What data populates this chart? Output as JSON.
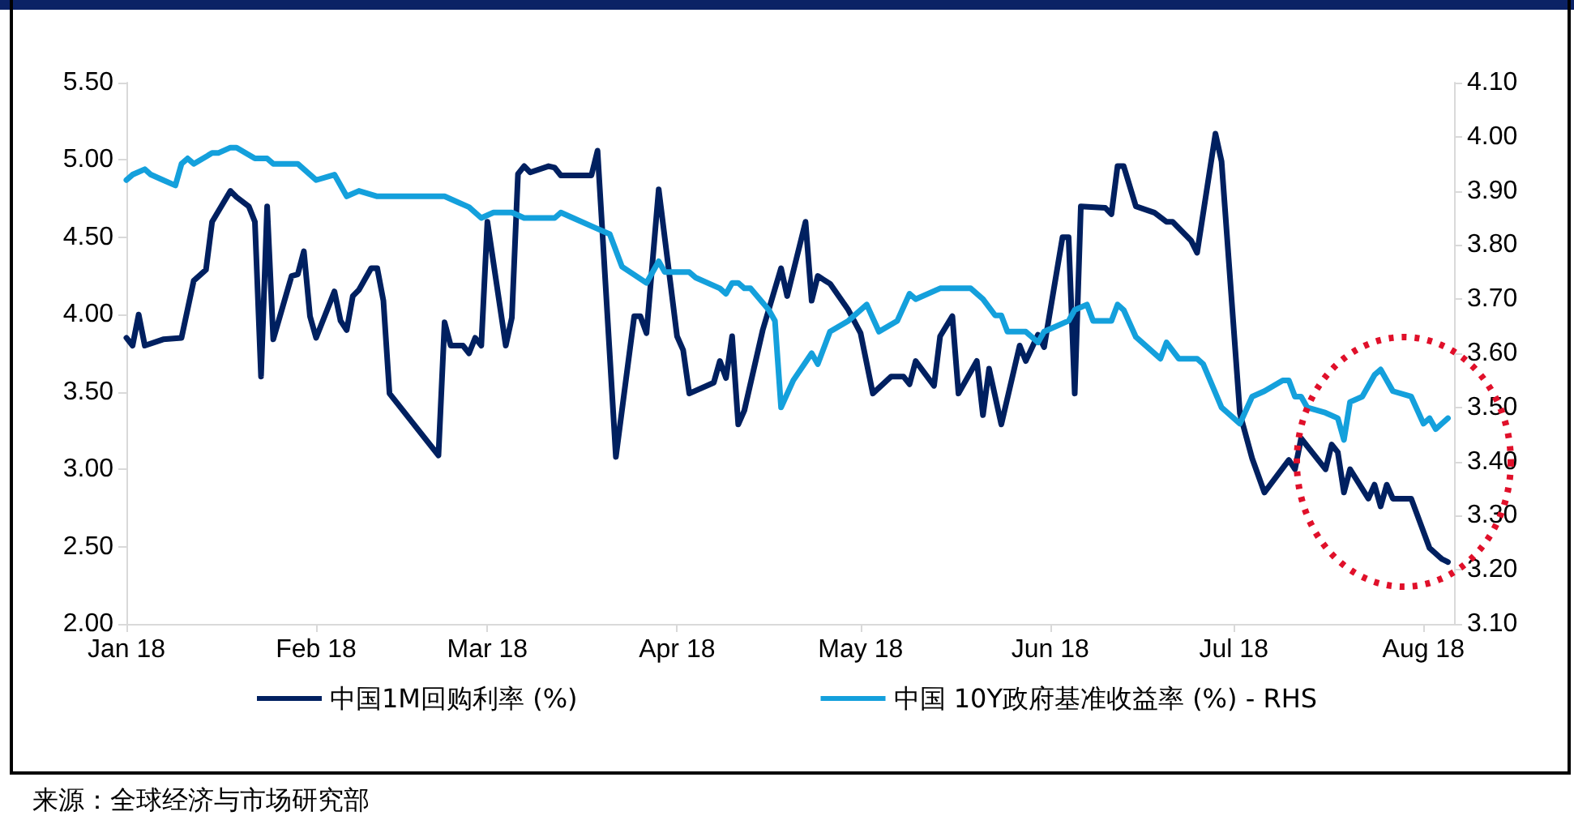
{
  "chart_data": {
    "type": "line",
    "annotations": [
      "来源：全球经济与市场研究部"
    ],
    "xlim": [
      "2018-01-01",
      "2018-08-06"
    ],
    "xticks": [
      {
        "value": "2018-01-01",
        "label": "Jan 18"
      },
      {
        "value": "2018-02-01",
        "label": "Feb 18"
      },
      {
        "value": "2018-03-01",
        "label": "Mar 18"
      },
      {
        "value": "2018-04-01",
        "label": "Apr 18"
      },
      {
        "value": "2018-05-01",
        "label": "May 18"
      },
      {
        "value": "2018-06-01",
        "label": "Jun 18"
      },
      {
        "value": "2018-07-01",
        "label": "Jul 18"
      },
      {
        "value": "2018-08-01",
        "label": "Aug 18"
      }
    ],
    "ylim": [
      2,
      5.5
    ],
    "yticks": [
      {
        "value": 2,
        "label": "2.00"
      },
      {
        "value": 2.5,
        "label": "2.50"
      },
      {
        "value": 3,
        "label": "3.00"
      },
      {
        "value": 3.5,
        "label": "3.50"
      },
      {
        "value": 4,
        "label": "4.00"
      },
      {
        "value": 4.5,
        "label": "4.50"
      },
      {
        "value": 5,
        "label": "5.00"
      },
      {
        "value": 5.5,
        "label": "5.50"
      }
    ],
    "y2lim": [
      3.1,
      4.1
    ],
    "y2ticks": [
      {
        "value": 3.1,
        "label": "3.10"
      },
      {
        "value": 3.2,
        "label": "3.20"
      },
      {
        "value": 3.3,
        "label": "3.30"
      },
      {
        "value": 3.4,
        "label": "3.40"
      },
      {
        "value": 3.5,
        "label": "3.50"
      },
      {
        "value": 3.6,
        "label": "3.60"
      },
      {
        "value": 3.7,
        "label": "3.70"
      },
      {
        "value": 3.8,
        "label": "3.80"
      },
      {
        "value": 3.9,
        "label": "3.90"
      },
      {
        "value": 4.0,
        "label": "4.00"
      },
      {
        "value": 4.1,
        "label": "4.10"
      }
    ],
    "grid": false,
    "legend": "bottom",
    "marker": "none",
    "line_style": "solid",
    "series": [
      {
        "name": "中国1M回购利率 (%)",
        "color": "#002060",
        "x": [
          "2018-01-01",
          "2018-01-02",
          "2018-01-03",
          "2018-01-04",
          "2018-01-07",
          "2018-01-10",
          "2018-01-12",
          "2018-01-14",
          "2018-01-15",
          "2018-01-18",
          "2018-01-19",
          "2018-01-21",
          "2018-01-22",
          "2018-01-23",
          "2018-01-24",
          "2018-01-25",
          "2018-01-28",
          "2018-01-29",
          "2018-01-30",
          "2018-01-31",
          "2018-02-01",
          "2018-02-04",
          "2018-02-05",
          "2018-02-06",
          "2018-02-07",
          "2018-02-08",
          "2018-02-10",
          "2018-02-11",
          "2018-02-12",
          "2018-02-13",
          "2018-02-21",
          "2018-02-22",
          "2018-02-23",
          "2018-02-25",
          "2018-02-26",
          "2018-02-27",
          "2018-02-28",
          "2018-03-01",
          "2018-03-04",
          "2018-03-05",
          "2018-03-06",
          "2018-03-07",
          "2018-03-08",
          "2018-03-11",
          "2018-03-12",
          "2018-03-13",
          "2018-03-18",
          "2018-03-19",
          "2018-03-22",
          "2018-03-25",
          "2018-03-26",
          "2018-03-27",
          "2018-03-29",
          "2018-04-01",
          "2018-04-02",
          "2018-04-03",
          "2018-04-07",
          "2018-04-08",
          "2018-04-09",
          "2018-04-10",
          "2018-04-11",
          "2018-04-12",
          "2018-04-15",
          "2018-04-18",
          "2018-04-19",
          "2018-04-22",
          "2018-04-23",
          "2018-04-24",
          "2018-04-26",
          "2018-04-29",
          "2018-05-01",
          "2018-05-03",
          "2018-05-06",
          "2018-05-08",
          "2018-05-09",
          "2018-05-10",
          "2018-05-13",
          "2018-05-14",
          "2018-05-16",
          "2018-05-17",
          "2018-05-20",
          "2018-05-21",
          "2018-05-22",
          "2018-05-24",
          "2018-05-27",
          "2018-05-28",
          "2018-05-30",
          "2018-05-31",
          "2018-06-03",
          "2018-06-04",
          "2018-06-05",
          "2018-06-06",
          "2018-06-10",
          "2018-06-11",
          "2018-06-12",
          "2018-06-13",
          "2018-06-15",
          "2018-06-18",
          "2018-06-20",
          "2018-06-21",
          "2018-06-24",
          "2018-06-25",
          "2018-06-28",
          "2018-06-29",
          "2018-07-02",
          "2018-07-04",
          "2018-07-06",
          "2018-07-10",
          "2018-07-11",
          "2018-07-12",
          "2018-07-16",
          "2018-07-17",
          "2018-07-18",
          "2018-07-19",
          "2018-07-20",
          "2018-07-23",
          "2018-07-24",
          "2018-07-25",
          "2018-07-26",
          "2018-07-27",
          "2018-07-30",
          "2018-08-02",
          "2018-08-04",
          "2018-08-05"
        ],
        "values": [
          3.85,
          3.8,
          4.0,
          3.8,
          3.84,
          3.85,
          4.22,
          4.29,
          4.6,
          4.8,
          4.76,
          4.7,
          4.6,
          3.6,
          4.7,
          3.84,
          4.25,
          4.26,
          4.41,
          3.99,
          3.85,
          4.15,
          3.96,
          3.9,
          4.12,
          4.16,
          4.3,
          4.3,
          4.09,
          3.49,
          3.09,
          3.95,
          3.8,
          3.8,
          3.75,
          3.85,
          3.8,
          4.6,
          3.8,
          3.98,
          4.91,
          4.96,
          4.92,
          4.96,
          4.95,
          4.9,
          4.9,
          5.06,
          3.08,
          3.99,
          3.99,
          3.88,
          4.81,
          3.86,
          3.77,
          3.49,
          3.56,
          3.7,
          3.59,
          3.86,
          3.29,
          3.38,
          3.9,
          4.3,
          4.12,
          4.6,
          4.09,
          4.25,
          4.2,
          4.03,
          3.88,
          3.49,
          3.6,
          3.6,
          3.55,
          3.7,
          3.54,
          3.86,
          3.99,
          3.49,
          3.7,
          3.35,
          3.65,
          3.29,
          3.8,
          3.7,
          3.87,
          3.79,
          4.5,
          4.5,
          3.49,
          4.7,
          4.69,
          4.65,
          4.96,
          4.96,
          4.7,
          4.66,
          4.6,
          4.6,
          4.48,
          4.4,
          5.17,
          4.99,
          3.36,
          3.07,
          2.85,
          3.06,
          3.0,
          3.2,
          3.0,
          3.16,
          3.11,
          2.85,
          3.0,
          2.81,
          2.9,
          2.76,
          2.9,
          2.81,
          2.81,
          2.49,
          2.42,
          2.4
        ]
      },
      {
        "name": "中国 10Y政府基准收益率 (%) - RHS",
        "color": "#14a0dc",
        "axis": "y2",
        "x": [
          "2018-01-01",
          "2018-01-02",
          "2018-01-04",
          "2018-01-05",
          "2018-01-07",
          "2018-01-09",
          "2018-01-10",
          "2018-01-11",
          "2018-01-12",
          "2018-01-15",
          "2018-01-16",
          "2018-01-18",
          "2018-01-19",
          "2018-01-22",
          "2018-01-24",
          "2018-01-25",
          "2018-01-29",
          "2018-02-01",
          "2018-02-04",
          "2018-02-06",
          "2018-02-08",
          "2018-02-11",
          "2018-02-22",
          "2018-02-24",
          "2018-02-26",
          "2018-02-28",
          "2018-03-02",
          "2018-03-05",
          "2018-03-07",
          "2018-03-12",
          "2018-03-13",
          "2018-03-15",
          "2018-03-19",
          "2018-03-21",
          "2018-03-23",
          "2018-03-27",
          "2018-03-29",
          "2018-03-30",
          "2018-04-02",
          "2018-04-03",
          "2018-04-04",
          "2018-04-08",
          "2018-04-09",
          "2018-04-10",
          "2018-04-11",
          "2018-04-12",
          "2018-04-13",
          "2018-04-16",
          "2018-04-17",
          "2018-04-18",
          "2018-04-20",
          "2018-04-23",
          "2018-04-24",
          "2018-04-26",
          "2018-04-29",
          "2018-05-02",
          "2018-05-04",
          "2018-05-07",
          "2018-05-09",
          "2018-05-10",
          "2018-05-14",
          "2018-05-17",
          "2018-05-19",
          "2018-05-21",
          "2018-05-23",
          "2018-05-24",
          "2018-05-25",
          "2018-05-28",
          "2018-05-30",
          "2018-05-31",
          "2018-06-04",
          "2018-06-05",
          "2018-06-07",
          "2018-06-08",
          "2018-06-11",
          "2018-06-12",
          "2018-06-13",
          "2018-06-15",
          "2018-06-19",
          "2018-06-20",
          "2018-06-22",
          "2018-06-25",
          "2018-06-26",
          "2018-06-29",
          "2018-07-02",
          "2018-07-04",
          "2018-07-06",
          "2018-07-09",
          "2018-07-10",
          "2018-07-11",
          "2018-07-12",
          "2018-07-13",
          "2018-07-16",
          "2018-07-18",
          "2018-07-19",
          "2018-07-20",
          "2018-07-22",
          "2018-07-24",
          "2018-07-25",
          "2018-07-27",
          "2018-07-30",
          "2018-08-01",
          "2018-08-02",
          "2018-08-03",
          "2018-08-05"
        ],
        "values": [
          3.92,
          3.93,
          3.94,
          3.93,
          3.92,
          3.91,
          3.95,
          3.96,
          3.95,
          3.97,
          3.97,
          3.98,
          3.98,
          3.96,
          3.96,
          3.95,
          3.95,
          3.92,
          3.93,
          3.89,
          3.9,
          3.89,
          3.89,
          3.88,
          3.87,
          3.85,
          3.86,
          3.86,
          3.85,
          3.85,
          3.86,
          3.85,
          3.83,
          3.82,
          3.76,
          3.73,
          3.77,
          3.75,
          3.75,
          3.75,
          3.74,
          3.72,
          3.71,
          3.73,
          3.73,
          3.72,
          3.72,
          3.68,
          3.66,
          3.5,
          3.55,
          3.6,
          3.58,
          3.64,
          3.66,
          3.69,
          3.64,
          3.66,
          3.71,
          3.7,
          3.72,
          3.72,
          3.72,
          3.7,
          3.67,
          3.67,
          3.64,
          3.64,
          3.62,
          3.64,
          3.66,
          3.68,
          3.69,
          3.66,
          3.66,
          3.69,
          3.68,
          3.63,
          3.59,
          3.62,
          3.59,
          3.59,
          3.58,
          3.5,
          3.47,
          3.52,
          3.53,
          3.55,
          3.55,
          3.52,
          3.52,
          3.5,
          3.49,
          3.48,
          3.44,
          3.51,
          3.52,
          3.56,
          3.57,
          3.53,
          3.52,
          3.47,
          3.48,
          3.46,
          3.48
        ]
      }
    ]
  }
}
